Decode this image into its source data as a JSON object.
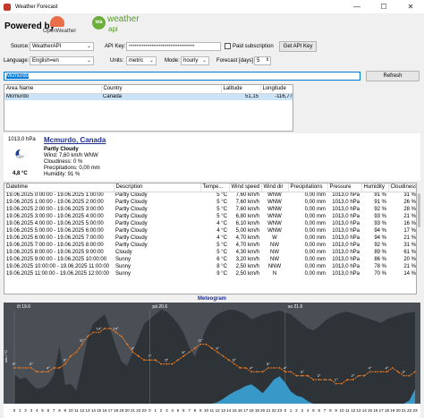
{
  "window": {
    "title": "Weather Forecast",
    "minimize": "—",
    "maximize": "☐",
    "close": "✕"
  },
  "brand": {
    "powered_by": "Powered by",
    "openweather": "OpenWeather",
    "weatherapi_top": "weather",
    "weatherapi_bottom": "api",
    "weatherapi_badge": "wa"
  },
  "settings": {
    "source_label": "Source:",
    "source_value": "WeatherAPI",
    "api_key_label": "API Key:",
    "api_key_value": "•••••••••••••••••••••••••••••••••••",
    "paid_label": "Paid subscription",
    "get_api_key": "Get API Key",
    "language_label": "Language:",
    "language_value": "English=en",
    "units_label": "Units:",
    "units_value": "metric",
    "mode_label": "Mode:",
    "mode_value": "hourly",
    "forecast_label": "Forecast [days]",
    "forecast_value": "5"
  },
  "search": {
    "value": "Mcmurdo",
    "refresh": "Refresh"
  },
  "locations": {
    "columns": [
      "Area Name",
      "Country",
      "Latitude",
      "Longitude"
    ],
    "rows": [
      {
        "area": "Mcmurdo",
        "country": "Canada",
        "lat": "51,15",
        "lon": "-116,77"
      }
    ]
  },
  "current": {
    "pressure": "1013,0 hPa",
    "temp": "4,8 °C",
    "city": "Mcmurdo, Canada",
    "desc": "Partly Cloudy",
    "wind": "Wind: 7,60 km/h WNW",
    "clouds": "Cloudiness: 0 %",
    "precip": "Precipitations: 0,00 mm",
    "humidity": "Humidity: 91 %"
  },
  "forecast": {
    "columns": [
      "Datetime",
      "Description",
      "Tempe...",
      "Wind speed",
      "Wind dir",
      "Precipitations",
      "Pressure",
      "Humidity",
      "Cloudiness"
    ],
    "rows": [
      [
        "19.06.2025 0:00:00 - 19.06.2025 1:00:00",
        "Partly Cloudy",
        "5 °C",
        "7,60 km/h",
        "WNW",
        "0,00 mm",
        "1013,0 hPa",
        "91 %",
        "31 %"
      ],
      [
        "19.06.2025 1:00:00 - 19.06.2025 2:00:00",
        "Partly Cloudy",
        "5 °C",
        "7,60 km/h",
        "WNW",
        "0,00 mm",
        "1013,0 hPa",
        "91 %",
        "26 %"
      ],
      [
        "19.06.2025 2:00:00 - 19.06.2025 3:00:00",
        "Partly Cloudy",
        "5 °C",
        "7,60 km/h",
        "WNW",
        "0,00 mm",
        "1013,0 hPa",
        "92 %",
        "28 %"
      ],
      [
        "19.06.2025 3:00:00 - 19.06.2025 4:00:00",
        "Partly Cloudy",
        "5 °C",
        "6,80 km/h",
        "WNW",
        "0,00 mm",
        "1013,0 hPa",
        "93 %",
        "21 %"
      ],
      [
        "19.06.2025 4:00:00 - 19.06.2025 5:00:00",
        "Partly Cloudy",
        "4 °C",
        "6,10 km/h",
        "WNW",
        "0,00 mm",
        "1013,0 hPa",
        "93 %",
        "16 %"
      ],
      [
        "19.06.2025 5:00:00 - 19.06.2025 6:00:00",
        "Partly Cloudy",
        "4 °C",
        "5,00 km/h",
        "WNW",
        "0,00 mm",
        "1013,0 hPa",
        "94 %",
        "17 %"
      ],
      [
        "19.06.2025 6:00:00 - 19.06.2025 7:00:00",
        "Partly Cloudy",
        "4 °C",
        "4,70 km/h",
        "W",
        "0,00 mm",
        "1013,0 hPa",
        "94 %",
        "21 %"
      ],
      [
        "19.06.2025 7:00:00 - 19.06.2025 8:00:00",
        "Partly Cloudy",
        "5 °C",
        "4,70 km/h",
        "NW",
        "0,00 mm",
        "1013,0 hPa",
        "92 %",
        "31 %"
      ],
      [
        "19.06.2025 8:00:00 - 19.06.2025 9:00:00",
        "Cloudy",
        "5 °C",
        "4,30 km/h",
        "NW",
        "0,00 mm",
        "1013,0 hPa",
        "89 %",
        "61 %"
      ],
      [
        "19.06.2025 9:00:00 - 19.06.2025 10:00:00",
        "Sunny",
        "6 °C",
        "3,20 km/h",
        "NW",
        "0,00 mm",
        "1013,0 hPa",
        "86 %",
        "20 %"
      ],
      [
        "19.06.2025 10:00:00 - 19.06.2025 11:00:00",
        "Sunny",
        "8 °C",
        "2,50 km/h",
        "NNW",
        "0,00 mm",
        "1013,0 hPa",
        "78 %",
        "21 %"
      ],
      [
        "19.06.2025 11:00:00 - 19.06.2025 12:00:00",
        "Sunny",
        "9 °C",
        "2,50 km/h",
        "N",
        "0,00 mm",
        "1013,0 hPa",
        "70 %",
        "14 %"
      ]
    ]
  },
  "meteogram": {
    "title": "Meteogram",
    "day_labels": [
      "čt 19.6",
      "pá 20.6",
      "so 21.6"
    ],
    "y_label": "min / °C",
    "hour_labels": [
      "0",
      "1",
      "2",
      "3",
      "4",
      "5",
      "6",
      "7",
      "8",
      "9",
      "10",
      "11",
      "12",
      "13",
      "14",
      "15",
      "16",
      "17",
      "18",
      "19",
      "20",
      "21",
      "22",
      "23",
      "0",
      "1",
      "2",
      "3",
      "4",
      "5",
      "6",
      "7",
      "8",
      "9",
      "10",
      "11",
      "12",
      "13",
      "14",
      "15",
      "16",
      "17",
      "18",
      "19",
      "20",
      "21",
      "22",
      "23",
      "0",
      "1",
      "2",
      "3",
      "4",
      "5",
      "6",
      "7",
      "8",
      "9",
      "10",
      "11",
      "12",
      "13",
      "14",
      "15",
      "16",
      "17",
      "18",
      "19",
      "20",
      "21",
      "22",
      "23"
    ],
    "colors": {
      "bg": "#4a4f55",
      "cloud": "#2e3338",
      "temp": "#f27c22",
      "precip": "#3aa3d8",
      "grid": "#6a6f75"
    },
    "temps": [
      5,
      5,
      5,
      5,
      4,
      4,
      4,
      5,
      5,
      6,
      8,
      9,
      11,
      13,
      14,
      14,
      15,
      15,
      14,
      13,
      11,
      9,
      8,
      7,
      7,
      7,
      6,
      6,
      6,
      7,
      8,
      9,
      10,
      11,
      11,
      10,
      9,
      8,
      7,
      6,
      5,
      5,
      4,
      4,
      4,
      5,
      5,
      5,
      4,
      4,
      3,
      3,
      3,
      2,
      2,
      2,
      2,
      1,
      1,
      2,
      2,
      3,
      3,
      4,
      4,
      4,
      4,
      5,
      4,
      3,
      3,
      4
    ],
    "precip": [
      0,
      0,
      0,
      0,
      0,
      0,
      0,
      0,
      0,
      0,
      0,
      0,
      0,
      0,
      0,
      0,
      0,
      0,
      0,
      0,
      0,
      0,
      0,
      0,
      0,
      0,
      0,
      0,
      0,
      0,
      0,
      0,
      0,
      0,
      0,
      0,
      0.2,
      0.6,
      1.1,
      1.5,
      1.8,
      2.2,
      2.4,
      1.9,
      1.3,
      2.1,
      3.0,
      3.4,
      2.6,
      1.5,
      1.0,
      0.8,
      0.3,
      0,
      0,
      0,
      0,
      0,
      0,
      0,
      0,
      0,
      0,
      0,
      0,
      0,
      0,
      0,
      0,
      0,
      0.4,
      1.8
    ],
    "cloud": [
      31,
      26,
      28,
      21,
      16,
      17,
      21,
      31,
      61,
      20,
      21,
      14,
      40,
      70,
      85,
      90,
      95,
      80,
      60,
      45,
      40,
      55,
      70,
      85,
      90,
      95,
      100,
      98,
      92,
      85,
      75,
      60,
      50,
      65,
      80,
      90,
      95,
      98,
      100,
      100,
      98,
      95,
      90,
      92,
      95,
      96,
      98,
      99,
      97,
      95,
      90,
      85,
      80,
      78,
      82,
      88,
      92,
      95,
      97,
      98,
      96,
      94,
      92,
      90,
      88,
      86,
      90,
      92,
      94,
      96,
      97,
      98
    ]
  }
}
